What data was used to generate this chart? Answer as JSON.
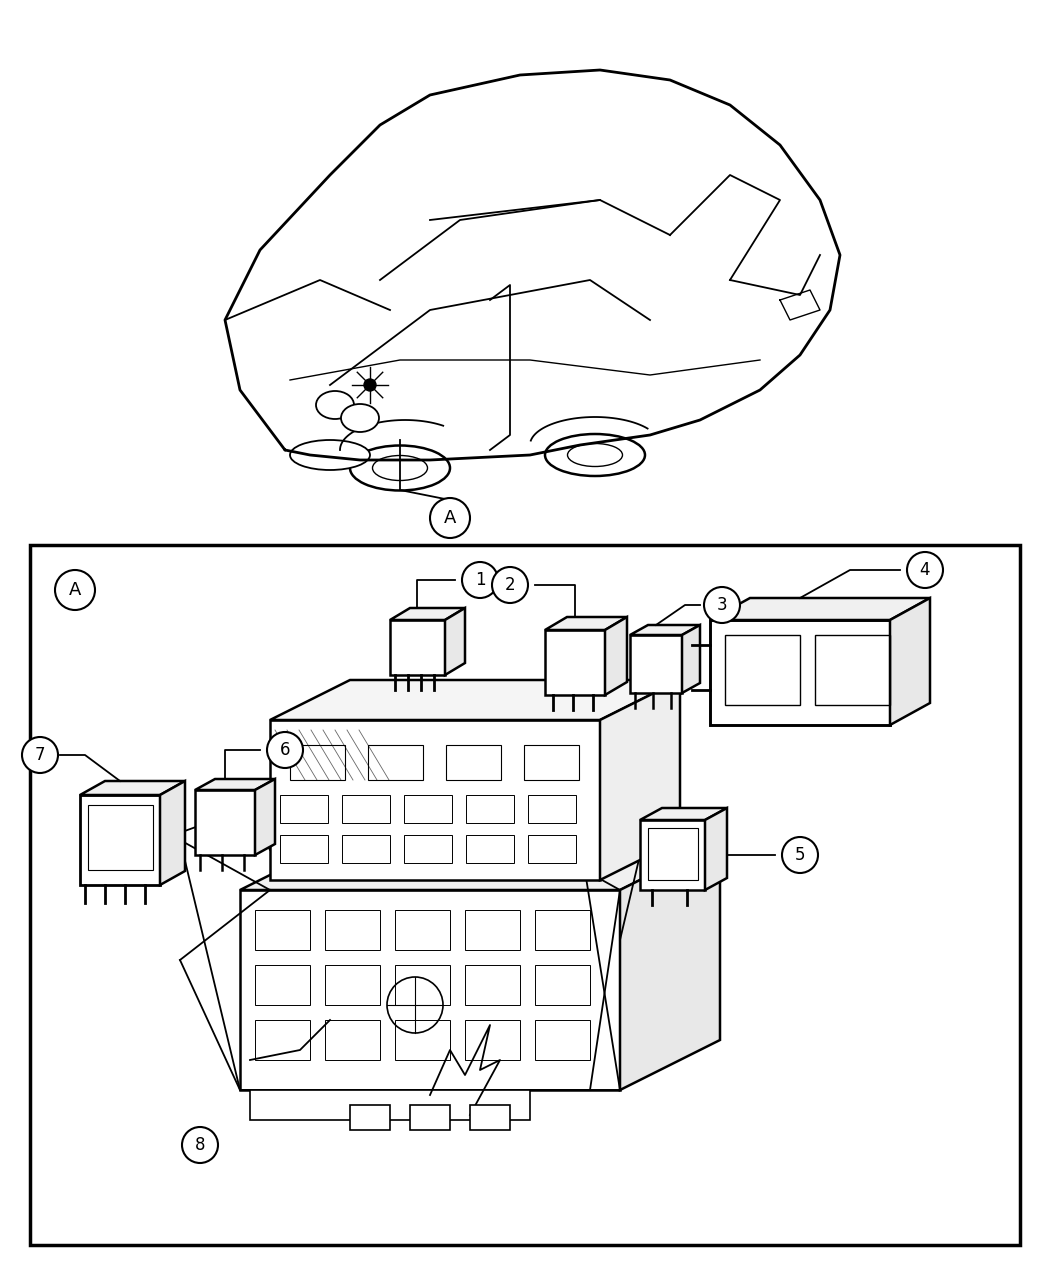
{
  "bg_color": "#ffffff",
  "line_color": "#000000",
  "lw_main": 1.8,
  "lw_thin": 1.0,
  "lw_med": 1.3,
  "fig_w": 10.5,
  "fig_h": 12.75,
  "dpi": 100
}
